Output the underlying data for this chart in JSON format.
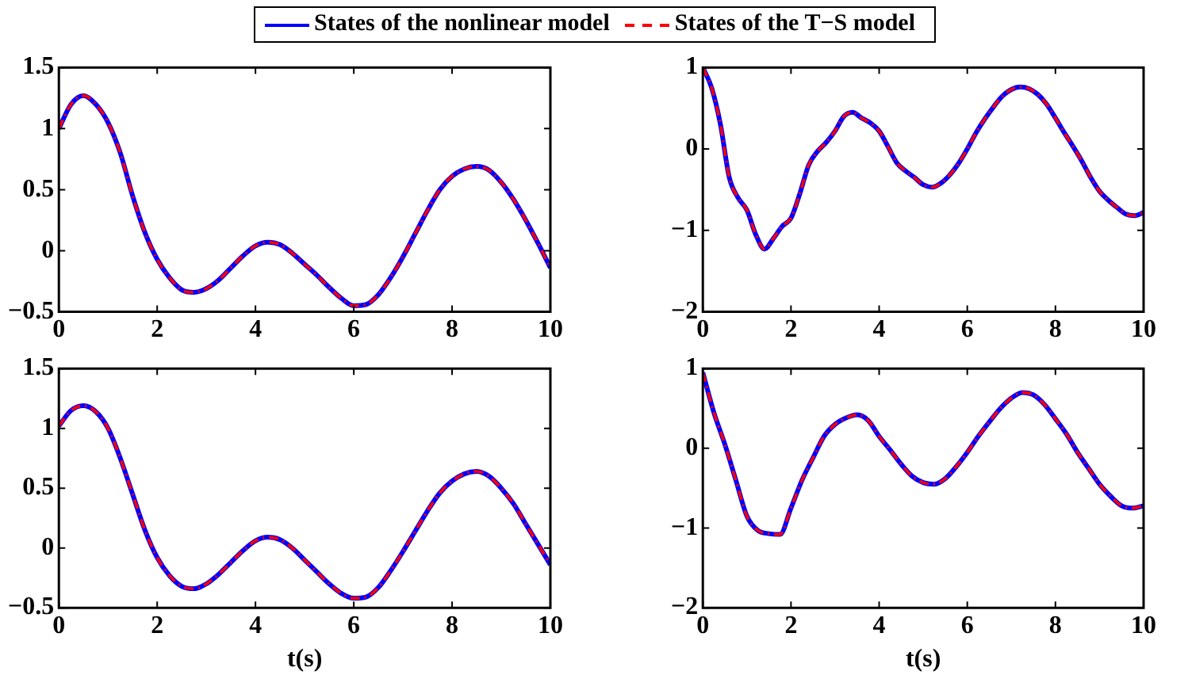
{
  "chart_data": [
    {
      "type": "line",
      "legend": "top",
      "xlim": [
        0,
        10
      ],
      "xticks": [
        0,
        2,
        4,
        6,
        8,
        10
      ],
      "ylim": [
        -0.5,
        1.5
      ],
      "yticks": [
        -0.5,
        0,
        0.5,
        1,
        1.5
      ],
      "x": [
        0,
        0.25,
        0.5,
        0.75,
        1,
        1.25,
        1.5,
        1.75,
        2,
        2.25,
        2.5,
        2.75,
        3,
        3.25,
        3.5,
        3.75,
        4,
        4.25,
        4.5,
        4.75,
        5,
        5.25,
        5.5,
        5.75,
        6,
        6.25,
        6.5,
        6.75,
        7,
        7.25,
        7.5,
        7.75,
        8,
        8.25,
        8.5,
        8.75,
        9,
        9.25,
        9.5,
        9.75,
        10
      ],
      "series": [
        {
          "name": "States of the nonlinear model",
          "color": "#0000ff",
          "line_style": "solid",
          "values": [
            1.0,
            1.2,
            1.27,
            1.2,
            1.05,
            0.8,
            0.45,
            0.15,
            -0.07,
            -0.22,
            -0.32,
            -0.34,
            -0.31,
            -0.24,
            -0.14,
            -0.04,
            0.04,
            0.07,
            0.05,
            -0.02,
            -0.11,
            -0.2,
            -0.3,
            -0.39,
            -0.45,
            -0.44,
            -0.36,
            -0.22,
            -0.05,
            0.14,
            0.33,
            0.5,
            0.61,
            0.67,
            0.69,
            0.66,
            0.56,
            0.42,
            0.25,
            0.06,
            -0.14
          ]
        },
        {
          "name": "States of the T−S model",
          "color": "#ff0000",
          "line_style": "dashed",
          "values": [
            1.0,
            1.2,
            1.27,
            1.2,
            1.05,
            0.8,
            0.45,
            0.15,
            -0.07,
            -0.22,
            -0.32,
            -0.34,
            -0.31,
            -0.24,
            -0.14,
            -0.04,
            0.04,
            0.07,
            0.05,
            -0.02,
            -0.11,
            -0.2,
            -0.3,
            -0.39,
            -0.45,
            -0.44,
            -0.36,
            -0.22,
            -0.05,
            0.14,
            0.33,
            0.5,
            0.61,
            0.67,
            0.69,
            0.66,
            0.56,
            0.42,
            0.25,
            0.06,
            -0.14
          ]
        }
      ]
    },
    {
      "type": "line",
      "xlim": [
        0,
        10
      ],
      "xticks": [
        0,
        2,
        4,
        6,
        8,
        10
      ],
      "ylim": [
        -2,
        1
      ],
      "yticks": [
        -2,
        -1,
        0,
        1
      ],
      "x": [
        0,
        0.2,
        0.4,
        0.6,
        0.8,
        1,
        1.2,
        1.4,
        1.6,
        1.8,
        2,
        2.2,
        2.4,
        2.6,
        2.8,
        3,
        3.2,
        3.4,
        3.6,
        3.8,
        4,
        4.2,
        4.4,
        4.6,
        4.8,
        5,
        5.2,
        5.4,
        5.6,
        5.8,
        6,
        6.2,
        6.4,
        6.6,
        6.8,
        7,
        7.2,
        7.4,
        7.6,
        7.8,
        8,
        8.2,
        8.4,
        8.6,
        8.8,
        9,
        9.2,
        9.4,
        9.6,
        9.8,
        10
      ],
      "series": [
        {
          "color": "#0000ff",
          "line_style": "solid",
          "values": [
            1.0,
            0.75,
            0.3,
            -0.35,
            -0.6,
            -0.75,
            -1.05,
            -1.23,
            -1.1,
            -0.95,
            -0.85,
            -0.55,
            -0.2,
            -0.03,
            0.08,
            0.22,
            0.4,
            0.45,
            0.38,
            0.32,
            0.22,
            0.03,
            -0.17,
            -0.27,
            -0.35,
            -0.44,
            -0.47,
            -0.42,
            -0.32,
            -0.18,
            0.0,
            0.2,
            0.37,
            0.52,
            0.65,
            0.73,
            0.76,
            0.74,
            0.67,
            0.55,
            0.38,
            0.2,
            0.03,
            -0.15,
            -0.35,
            -0.52,
            -0.63,
            -0.72,
            -0.8,
            -0.82,
            -0.78
          ]
        },
        {
          "color": "#ff0000",
          "line_style": "dashed",
          "values": [
            1.0,
            0.75,
            0.3,
            -0.35,
            -0.6,
            -0.75,
            -1.05,
            -1.23,
            -1.1,
            -0.95,
            -0.85,
            -0.55,
            -0.2,
            -0.03,
            0.08,
            0.22,
            0.4,
            0.45,
            0.38,
            0.32,
            0.22,
            0.03,
            -0.17,
            -0.27,
            -0.35,
            -0.44,
            -0.47,
            -0.42,
            -0.32,
            -0.18,
            0.0,
            0.2,
            0.37,
            0.52,
            0.65,
            0.73,
            0.76,
            0.74,
            0.67,
            0.55,
            0.38,
            0.2,
            0.03,
            -0.15,
            -0.35,
            -0.52,
            -0.63,
            -0.72,
            -0.8,
            -0.82,
            -0.78
          ]
        }
      ]
    },
    {
      "type": "line",
      "xlabel": "t(s)",
      "xlim": [
        0,
        10
      ],
      "xticks": [
        0,
        2,
        4,
        6,
        8,
        10
      ],
      "ylim": [
        -0.5,
        1.5
      ],
      "yticks": [
        -0.5,
        0,
        0.5,
        1,
        1.5
      ],
      "x": [
        0,
        0.25,
        0.5,
        0.75,
        1,
        1.25,
        1.5,
        1.75,
        2,
        2.25,
        2.5,
        2.75,
        3,
        3.25,
        3.5,
        3.75,
        4,
        4.25,
        4.5,
        4.75,
        5,
        5.25,
        5.5,
        5.75,
        6,
        6.25,
        6.5,
        6.75,
        7,
        7.25,
        7.5,
        7.75,
        8,
        8.25,
        8.5,
        8.75,
        9,
        9.25,
        9.5,
        9.75,
        10
      ],
      "series": [
        {
          "color": "#0000ff",
          "line_style": "solid",
          "values": [
            1.02,
            1.15,
            1.19,
            1.14,
            1.0,
            0.75,
            0.45,
            0.15,
            -0.08,
            -0.23,
            -0.32,
            -0.34,
            -0.3,
            -0.22,
            -0.12,
            -0.02,
            0.06,
            0.09,
            0.07,
            0.0,
            -0.1,
            -0.2,
            -0.3,
            -0.38,
            -0.42,
            -0.41,
            -0.33,
            -0.19,
            -0.03,
            0.14,
            0.31,
            0.46,
            0.56,
            0.62,
            0.64,
            0.6,
            0.5,
            0.37,
            0.2,
            0.03,
            -0.14
          ]
        },
        {
          "color": "#ff0000",
          "line_style": "dashed",
          "values": [
            1.02,
            1.15,
            1.19,
            1.14,
            1.0,
            0.75,
            0.45,
            0.15,
            -0.08,
            -0.23,
            -0.32,
            -0.34,
            -0.3,
            -0.22,
            -0.12,
            -0.02,
            0.06,
            0.09,
            0.07,
            0.0,
            -0.1,
            -0.2,
            -0.3,
            -0.38,
            -0.42,
            -0.41,
            -0.33,
            -0.19,
            -0.03,
            0.14,
            0.31,
            0.46,
            0.56,
            0.62,
            0.64,
            0.6,
            0.5,
            0.37,
            0.2,
            0.03,
            -0.14
          ]
        }
      ]
    },
    {
      "type": "line",
      "xlabel": "t(s)",
      "xlim": [
        0,
        10
      ],
      "xticks": [
        0,
        2,
        4,
        6,
        8,
        10
      ],
      "ylim": [
        -2,
        1
      ],
      "yticks": [
        -2,
        -1,
        0,
        1
      ],
      "x": [
        0,
        0.25,
        0.5,
        0.75,
        1,
        1.25,
        1.5,
        1.75,
        2,
        2.25,
        2.5,
        2.75,
        3,
        3.25,
        3.5,
        3.75,
        4,
        4.25,
        4.5,
        4.75,
        5,
        5.25,
        5.5,
        5.75,
        6,
        6.25,
        6.5,
        6.75,
        7,
        7.25,
        7.5,
        7.75,
        8,
        8.25,
        8.5,
        8.75,
        9,
        9.25,
        9.5,
        9.75,
        10
      ],
      "series": [
        {
          "color": "#0000ff",
          "line_style": "solid",
          "values": [
            0.95,
            0.45,
            0.05,
            -0.4,
            -0.85,
            -1.03,
            -1.07,
            -1.08,
            -0.75,
            -0.4,
            -0.12,
            0.15,
            0.3,
            0.38,
            0.42,
            0.35,
            0.15,
            -0.02,
            -0.2,
            -0.35,
            -0.43,
            -0.45,
            -0.38,
            -0.23,
            -0.05,
            0.15,
            0.33,
            0.5,
            0.63,
            0.7,
            0.67,
            0.55,
            0.37,
            0.18,
            -0.05,
            -0.25,
            -0.45,
            -0.6,
            -0.72,
            -0.75,
            -0.72
          ]
        },
        {
          "color": "#ff0000",
          "line_style": "dashed",
          "values": [
            0.95,
            0.45,
            0.05,
            -0.4,
            -0.85,
            -1.03,
            -1.07,
            -1.08,
            -0.75,
            -0.4,
            -0.12,
            0.15,
            0.3,
            0.38,
            0.42,
            0.35,
            0.15,
            -0.02,
            -0.2,
            -0.35,
            -0.43,
            -0.45,
            -0.38,
            -0.23,
            -0.05,
            0.15,
            0.33,
            0.5,
            0.63,
            0.7,
            0.67,
            0.55,
            0.37,
            0.18,
            -0.05,
            -0.25,
            -0.45,
            -0.6,
            -0.72,
            -0.75,
            -0.72
          ]
        }
      ]
    }
  ]
}
